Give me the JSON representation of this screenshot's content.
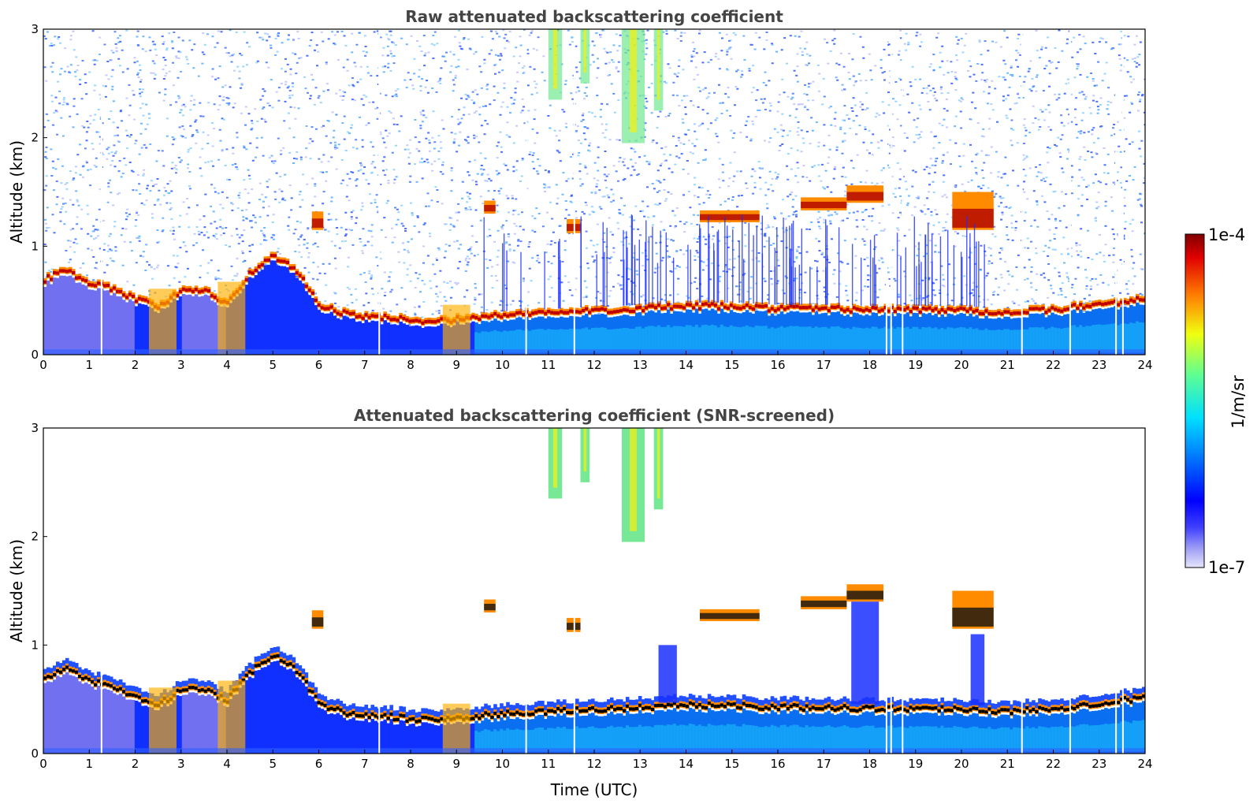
{
  "chart_data": [
    {
      "type": "heatmap",
      "title": "Raw attenuated backscattering coefficient",
      "xlabel": "",
      "ylabel": "Altitude (km)",
      "xlim": [
        0,
        24
      ],
      "ylim": [
        0,
        3
      ],
      "x_ticks": [
        "0",
        "1",
        "2",
        "3",
        "4",
        "5",
        "6",
        "7",
        "8",
        "9",
        "10",
        "11",
        "12",
        "13",
        "14",
        "15",
        "16",
        "17",
        "18",
        "19",
        "20",
        "21",
        "22",
        "23",
        "24"
      ],
      "y_ticks": [
        "0",
        "1",
        "2",
        "3"
      ],
      "screened": false,
      "boundary_layer_top_km": [
        [
          0,
          0.72
        ],
        [
          0.5,
          0.82
        ],
        [
          1,
          0.7
        ],
        [
          1.5,
          0.65
        ],
        [
          2,
          0.55
        ],
        [
          2.5,
          0.48
        ],
        [
          3,
          0.62
        ],
        [
          3.5,
          0.62
        ],
        [
          4,
          0.52
        ],
        [
          4.5,
          0.78
        ],
        [
          5,
          0.95
        ],
        [
          5.5,
          0.82
        ],
        [
          6,
          0.5
        ],
        [
          6.5,
          0.42
        ],
        [
          7,
          0.38
        ],
        [
          7.5,
          0.38
        ],
        [
          8,
          0.35
        ],
        [
          8.5,
          0.35
        ],
        [
          9,
          0.36
        ],
        [
          9.5,
          0.38
        ],
        [
          10,
          0.4
        ],
        [
          11,
          0.42
        ],
        [
          12,
          0.44
        ],
        [
          13,
          0.46
        ],
        [
          14,
          0.48
        ],
        [
          15,
          0.48
        ],
        [
          16,
          0.46
        ],
        [
          17,
          0.46
        ],
        [
          18,
          0.45
        ],
        [
          19,
          0.45
        ],
        [
          20,
          0.45
        ],
        [
          21,
          0.42
        ],
        [
          22,
          0.45
        ],
        [
          23,
          0.5
        ],
        [
          24,
          0.55
        ]
      ],
      "cloud_layers": [
        {
          "x0": 5.85,
          "x1": 6.1,
          "y0": 1.15,
          "y1": 1.32
        },
        {
          "x0": 9.6,
          "x1": 9.85,
          "y0": 1.3,
          "y1": 1.42
        },
        {
          "x0": 11.4,
          "x1": 11.7,
          "y0": 1.12,
          "y1": 1.25
        },
        {
          "x0": 14.3,
          "x1": 15.6,
          "y0": 1.22,
          "y1": 1.33
        },
        {
          "x0": 16.5,
          "x1": 17.5,
          "y0": 1.33,
          "y1": 1.45
        },
        {
          "x0": 17.5,
          "x1": 18.3,
          "y0": 1.4,
          "y1": 1.56
        },
        {
          "x0": 19.8,
          "x1": 20.7,
          "y0": 1.15,
          "y1": 1.5
        }
      ],
      "high_cloud_plumes": [
        {
          "x0": 11.0,
          "x1": 11.3,
          "y0": 2.35,
          "y1": 3.0
        },
        {
          "x0": 11.7,
          "x1": 11.9,
          "y0": 2.5,
          "y1": 3.0
        },
        {
          "x0": 12.6,
          "x1": 13.1,
          "y0": 1.95,
          "y1": 3.0
        },
        {
          "x0": 13.3,
          "x1": 13.5,
          "y0": 2.25,
          "y1": 3.0
        }
      ]
    },
    {
      "type": "heatmap",
      "title": "Attenuated backscattering coefficient (SNR-screened)",
      "xlabel": "Time (UTC)",
      "ylabel": "Altitude (km)",
      "xlim": [
        0,
        24
      ],
      "ylim": [
        0,
        3
      ],
      "x_ticks": [
        "0",
        "1",
        "2",
        "3",
        "4",
        "5",
        "6",
        "7",
        "8",
        "9",
        "10",
        "11",
        "12",
        "13",
        "14",
        "15",
        "16",
        "17",
        "18",
        "19",
        "20",
        "21",
        "22",
        "23",
        "24"
      ],
      "y_ticks": [
        "0",
        "1",
        "2",
        "3"
      ],
      "screened": true
    }
  ],
  "colorbar": {
    "label": "1/m/sr",
    "max_label": "1e-4",
    "min_label": "1e-7",
    "scale": "log",
    "range": [
      1e-07,
      0.0001
    ],
    "colormap": "jet"
  }
}
